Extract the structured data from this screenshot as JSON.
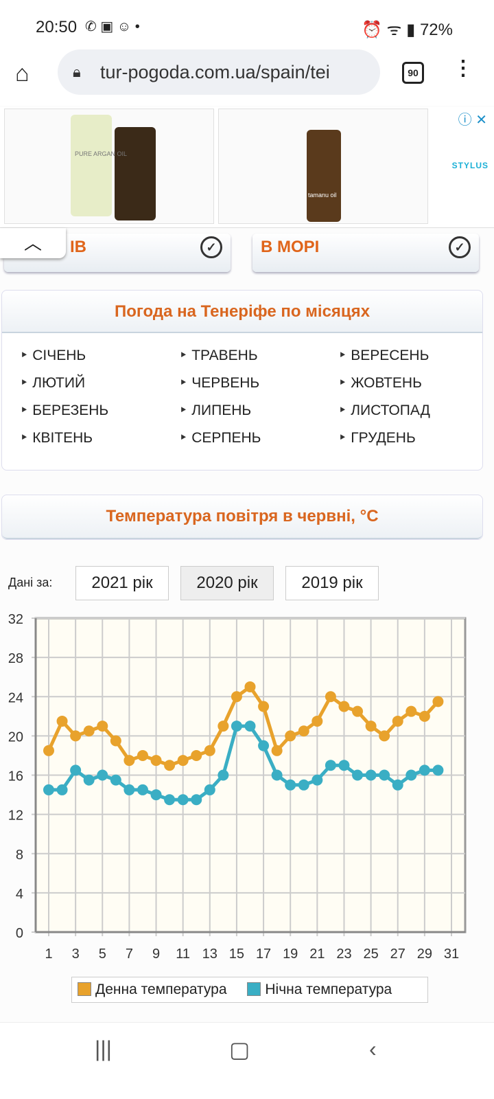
{
  "status": {
    "time": "20:50",
    "battery": "72%"
  },
  "browser": {
    "url": "tur-pogoda.com.ua/spain/tei",
    "tab_count": "90"
  },
  "ad": {
    "brand": "STYLUS",
    "product1": "PURE ARGAN OIL",
    "product2": "tamanu oil"
  },
  "tiles": [
    {
      "label": "ІВ"
    },
    {
      "label": "В МОРІ"
    }
  ],
  "months_panel": {
    "title": "Погода на Тенеріфе по місяцях",
    "months": [
      "СІЧЕНЬ",
      "ТРАВЕНЬ",
      "ВЕРЕСЕНЬ",
      "ЛЮТИЙ",
      "ЧЕРВЕНЬ",
      "ЖОВТЕНЬ",
      "БЕРЕЗЕНЬ",
      "ЛИПЕНЬ",
      "ЛИСТОПАД",
      "КВІТЕНЬ",
      "СЕРПЕНЬ",
      "ГРУДЕНЬ"
    ]
  },
  "temp_panel": {
    "title": "Температура повітря в червні, °C",
    "data_label": "Дані за:",
    "years": [
      "2021 рік",
      "2020 рік",
      "2019 рік"
    ],
    "selected_year": "2020 рік"
  },
  "chart_data": {
    "type": "line",
    "title": "Температура повітря в червні, °C",
    "x": [
      1,
      2,
      3,
      4,
      5,
      6,
      7,
      8,
      9,
      10,
      11,
      12,
      13,
      14,
      15,
      16,
      17,
      18,
      19,
      20,
      21,
      22,
      23,
      24,
      25,
      26,
      27,
      28,
      29,
      30
    ],
    "xticks": [
      "1",
      "3",
      "5",
      "7",
      "9",
      "11",
      "13",
      "15",
      "17",
      "19",
      "21",
      "23",
      "25",
      "27",
      "29",
      "31"
    ],
    "yticks": [
      "0",
      "4",
      "8",
      "12",
      "16",
      "20",
      "24",
      "28",
      "32"
    ],
    "ylim": [
      0,
      32
    ],
    "xlim": [
      0.1,
      31.5
    ],
    "series": [
      {
        "name": "Денна температура",
        "color": "#e8a22c",
        "values": [
          18.5,
          21.5,
          20,
          20.5,
          21,
          19.5,
          17.5,
          18,
          17.5,
          17,
          17.5,
          18,
          18.5,
          21,
          24,
          25,
          23,
          18.5,
          20,
          20.5,
          21.5,
          24,
          23,
          22.5,
          21,
          20,
          21.5,
          22.5,
          22,
          23.5
        ]
      },
      {
        "name": "Нічна температура",
        "color": "#3aaec4",
        "values": [
          14.5,
          14.5,
          16.5,
          15.5,
          16,
          15.5,
          14.5,
          14.5,
          14,
          13.5,
          13.5,
          13.5,
          14.5,
          16,
          21,
          21,
          19,
          16,
          15,
          15,
          15.5,
          17,
          17,
          16,
          16,
          16,
          15,
          16,
          16.5,
          16.5
        ]
      }
    ],
    "legend": "bottom"
  }
}
